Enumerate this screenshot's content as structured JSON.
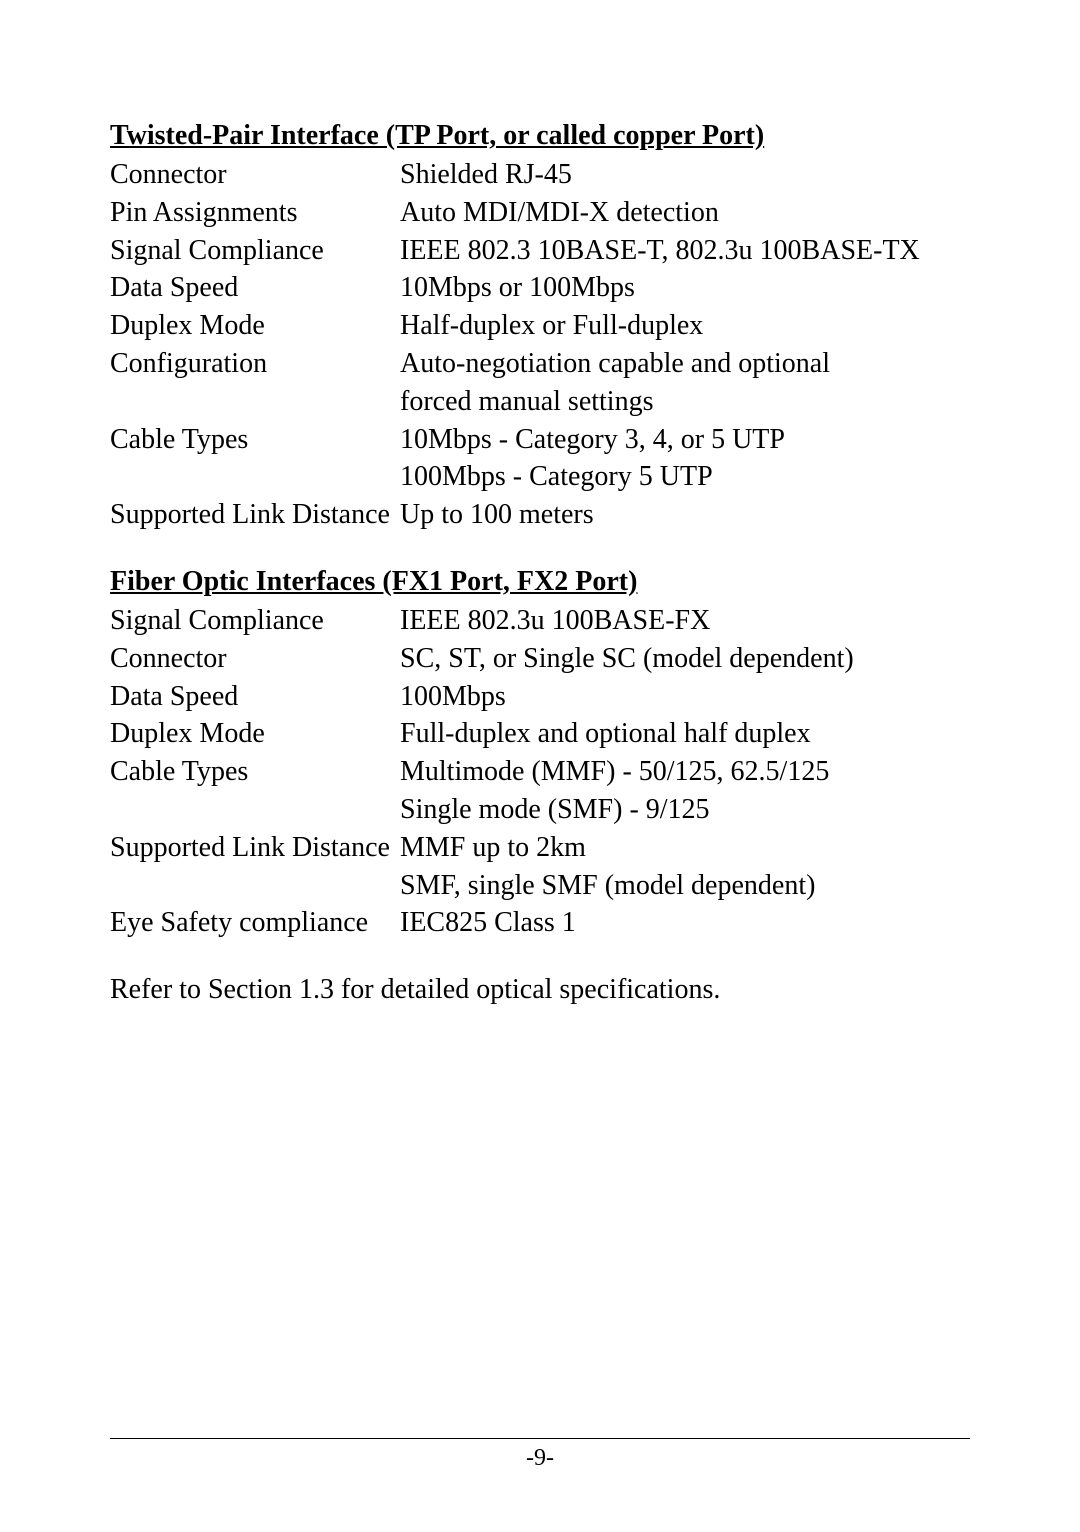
{
  "page": {
    "background_color": "#ffffff",
    "text_color": "#000000",
    "heading_fontsize": 28,
    "body_fontsize": 28,
    "footer_fontsize": 24,
    "font_family": "Times New Roman"
  },
  "section1": {
    "heading": "Twisted-Pair Interface (TP Port, or called copper Port)",
    "rows": {
      "connector_label": "Connector",
      "connector_value": "Shielded RJ-45",
      "pin_label": "Pin Assignments",
      "pin_value": "Auto MDI/MDI-X detection",
      "signal_label": "Signal Compliance",
      "signal_value": "IEEE 802.3 10BASE-T, 802.3u 100BASE-TX",
      "speed_label": "Data Speed",
      "speed_value": "10Mbps or 100Mbps",
      "duplex_label": "Duplex Mode",
      "duplex_value": "Half-duplex or Full-duplex",
      "config_label": "Configuration",
      "config_value1": "Auto-negotiation capable and optional",
      "config_value2": "forced manual settings",
      "cable_label": "Cable Types",
      "cable_value1": "10Mbps - Category 3, 4, or 5 UTP",
      "cable_value2": "100Mbps - Category 5 UTP",
      "link_label": "Supported Link Distance",
      "link_value": "Up to 100 meters"
    }
  },
  "section2": {
    "heading": "Fiber Optic Interfaces (FX1 Port, FX2 Port)",
    "rows": {
      "signal_label": "Signal Compliance",
      "signal_value": "IEEE 802.3u 100BASE-FX",
      "connector_label": "Connector",
      "connector_value": "SC, ST, or Single SC (model dependent)",
      "speed_label": "Data Speed",
      "speed_value": "100Mbps",
      "duplex_label": "Duplex Mode",
      "duplex_value": "Full-duplex and optional half duplex",
      "cable_label": "Cable Types",
      "cable_value1": "Multimode (MMF) - 50/125, 62.5/125",
      "cable_value2": "Single mode (SMF) - 9/125",
      "link_label": "Supported Link Distance",
      "link_value1": "MMF up to 2km",
      "link_value2": "SMF, single SMF (model dependent)",
      "eye_label": "Eye Safety compliance",
      "eye_value": "IEC825 Class 1"
    }
  },
  "footnote": "Refer to Section 1.3 for detailed optical specifications.",
  "page_number": "-9-"
}
